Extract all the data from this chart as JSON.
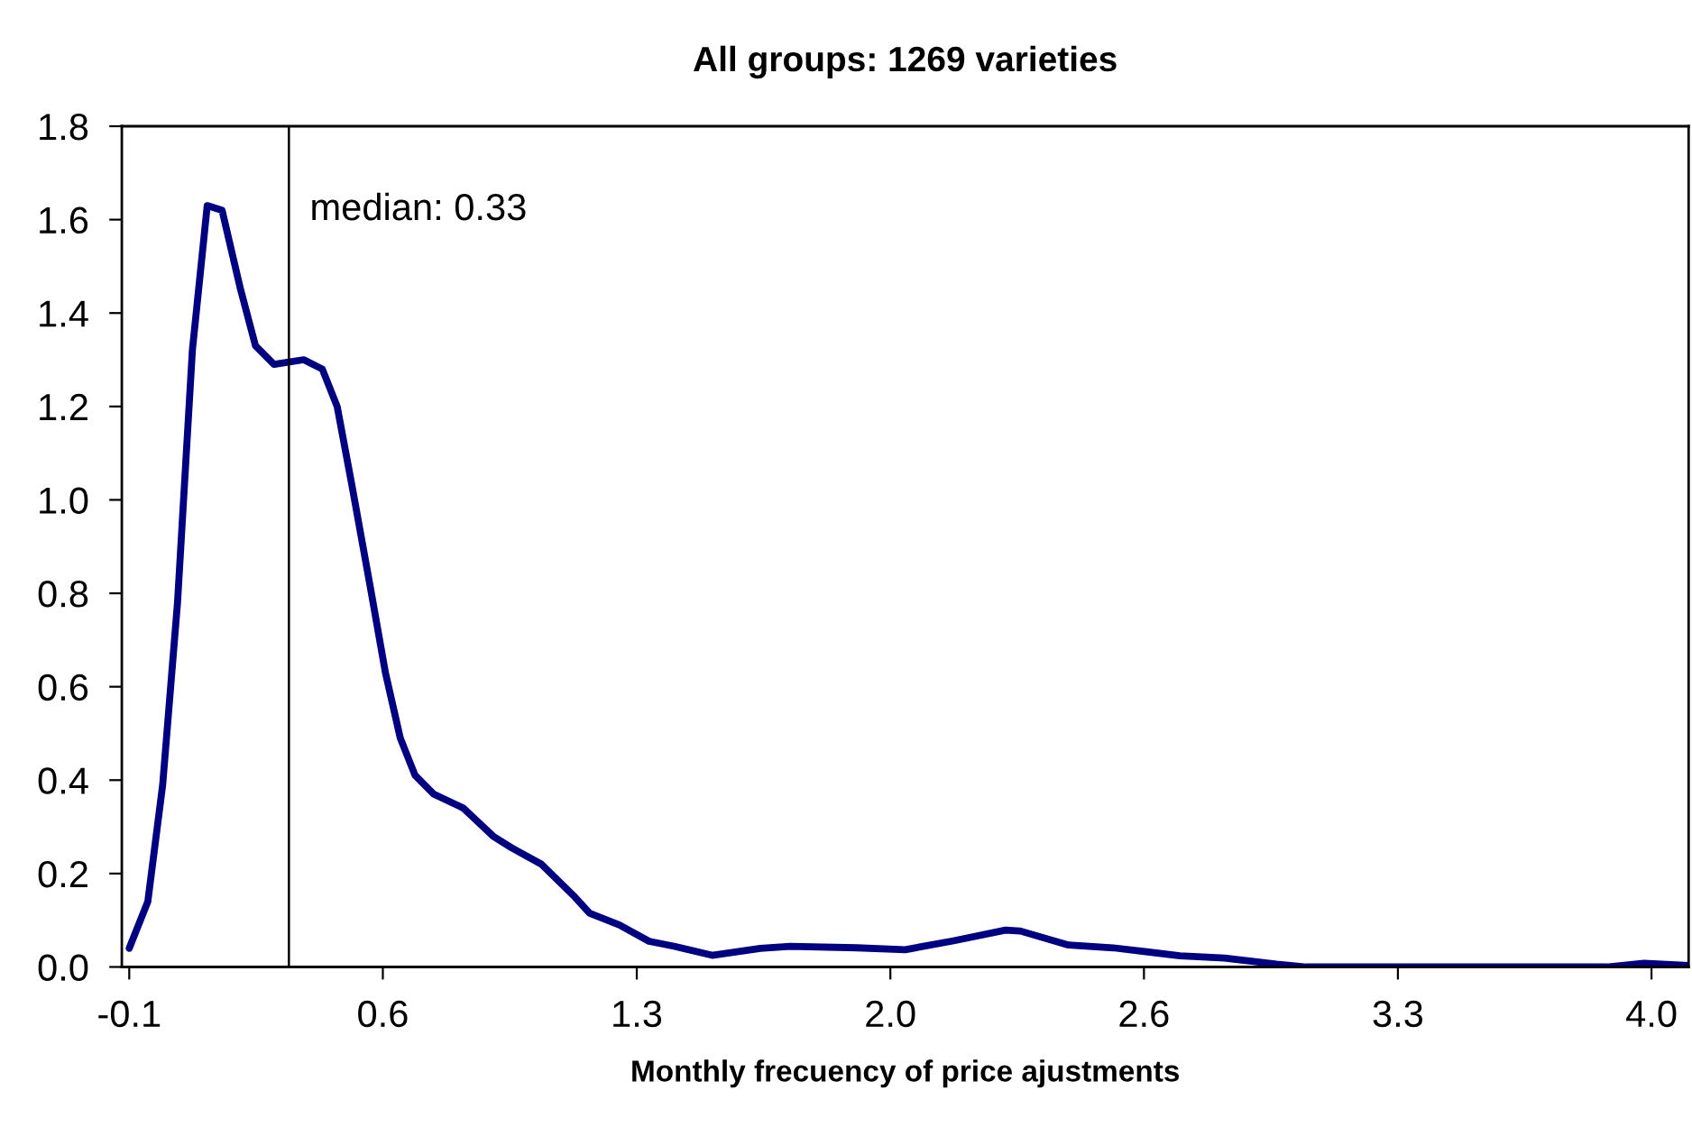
{
  "chart_data": {
    "type": "line",
    "title": "All groups: 1269 varieties",
    "xlabel": "Monthly frecuency of price ajustments",
    "x": [
      -0.1,
      -0.05,
      -0.01,
      0.03,
      0.07,
      0.11,
      0.15,
      0.2,
      0.24,
      0.29,
      0.37,
      0.42,
      0.46,
      0.5,
      0.55,
      0.59,
      0.63,
      0.67,
      0.72,
      0.8,
      0.88,
      0.93,
      1.01,
      1.1,
      1.14,
      1.22,
      1.3,
      1.37,
      1.47,
      1.6,
      1.68,
      1.86,
      1.99,
      2.12,
      2.26,
      2.3,
      2.43,
      2.55,
      2.73,
      2.85,
      2.99,
      3.07,
      3.88,
      3.98,
      4.1
    ],
    "series": [
      {
        "color": "#000080",
        "values": [
          0.04,
          0.14,
          0.39,
          0.78,
          1.32,
          1.63,
          1.62,
          1.45,
          1.33,
          1.29,
          1.3,
          1.28,
          1.2,
          1.03,
          0.81,
          0.63,
          0.49,
          0.41,
          0.37,
          0.34,
          0.28,
          0.255,
          0.22,
          0.15,
          0.115,
          0.09,
          0.055,
          0.044,
          0.025,
          0.04,
          0.044,
          0.041,
          0.037,
          0.056,
          0.079,
          0.077,
          0.047,
          0.041,
          0.024,
          0.019,
          0.006,
          0.0,
          0.0,
          0.008,
          0.003
        ]
      }
    ],
    "xlim": [
      -0.12,
      4.1
    ],
    "ylim": [
      0,
      1.8
    ],
    "xticks": [
      -0.1,
      {
        "value": 0.583,
        "label": "0.6"
      },
      {
        "value": 1.267,
        "label": "1.3"
      },
      {
        "value": 1.95,
        "label": "2.0"
      },
      {
        "value": 2.633,
        "label": "2.6"
      },
      {
        "value": 3.317,
        "label": "3.3"
      },
      {
        "value": 4.0,
        "label": "4.0"
      }
    ],
    "yticks": [
      {
        "value": 0,
        "label": "0.0"
      },
      0.2,
      0.4,
      0.6,
      0.8,
      {
        "value": 1,
        "label": "1.0"
      },
      1.2,
      1.4,
      1.6,
      1.8
    ],
    "ref_lines": [
      {
        "axis": "x",
        "value": 0.33,
        "label": "median: 0.33",
        "color": "#000000"
      }
    ],
    "grid": false,
    "legend": false,
    "marker": "none",
    "line_style": "solid"
  }
}
